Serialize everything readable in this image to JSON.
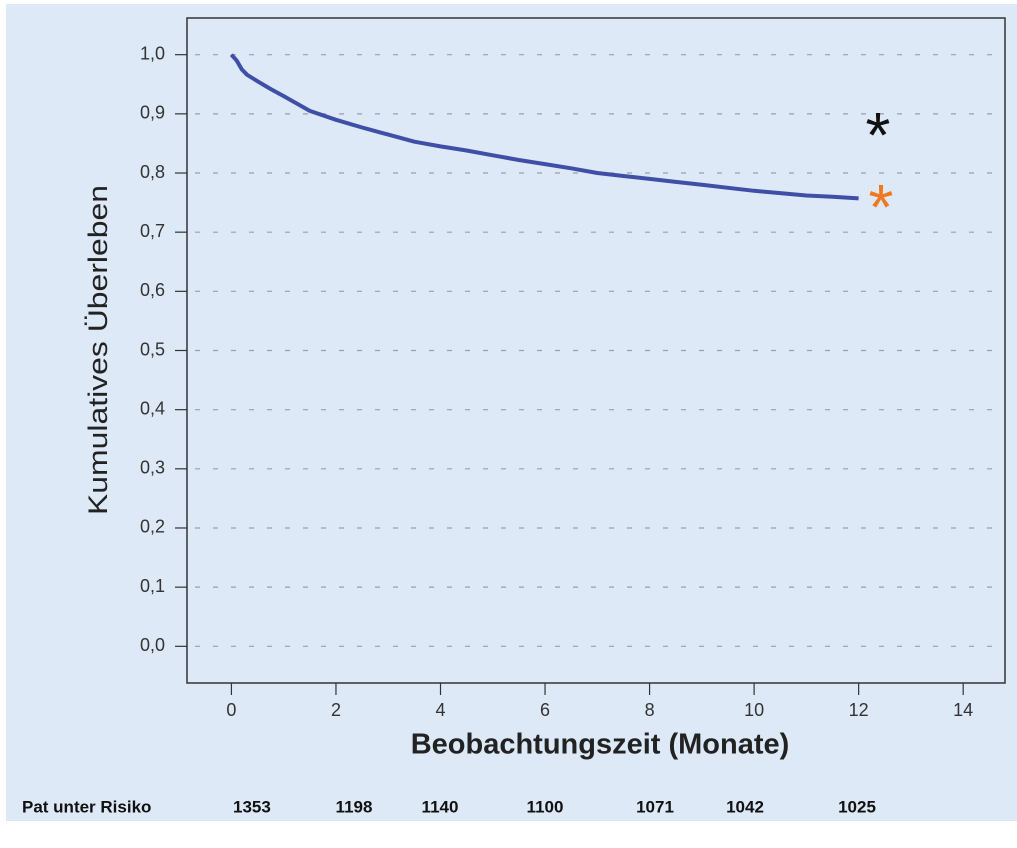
{
  "chart_data": {
    "type": "line",
    "ylabel": "Kumulatives Überleben",
    "xlabel": "Beobachtungszeit (Monate)",
    "x": [
      0,
      0.1,
      0.2,
      0.3,
      0.5,
      0.75,
      1,
      1.5,
      2,
      2.5,
      3,
      3.5,
      4,
      4.5,
      5,
      5.5,
      6,
      6.5,
      7,
      7.5,
      8,
      8.5,
      9,
      9.5,
      10,
      10.5,
      11,
      11.5,
      12
    ],
    "series": [
      {
        "color": "#3f4fa8",
        "values": [
          1.0,
          0.99,
          0.975,
          0.966,
          0.955,
          0.942,
          0.93,
          0.905,
          0.89,
          0.877,
          0.865,
          0.853,
          0.845,
          0.838,
          0.83,
          0.822,
          0.815,
          0.808,
          0.8,
          0.795,
          0.79,
          0.785,
          0.78,
          0.775,
          0.77,
          0.766,
          0.762,
          0.76,
          0.757
        ]
      }
    ],
    "xlim": [
      -0.85,
      14.8
    ],
    "ylim": [
      -0.062,
      1.062
    ],
    "xticks": [
      0,
      2,
      4,
      6,
      8,
      10,
      12,
      14
    ],
    "yticks": [
      {
        "value": 0,
        "label": "0,0"
      },
      {
        "value": 0.1,
        "label": "0,1"
      },
      {
        "value": 0.2,
        "label": "0,2"
      },
      {
        "value": 0.3,
        "label": "0,3"
      },
      {
        "value": 0.4,
        "label": "0,4"
      },
      {
        "value": 0.5,
        "label": "0,5"
      },
      {
        "value": 0.6,
        "label": "0,6"
      },
      {
        "value": 0.7,
        "label": "0,7"
      },
      {
        "value": 0.8,
        "label": "0,8"
      },
      {
        "value": 0.9,
        "label": "0,9"
      },
      {
        "value": 1,
        "label": "1,0"
      }
    ],
    "grid": true,
    "annotations": [
      {
        "text": "*",
        "color": "#111111"
      },
      {
        "text": "*",
        "color": "#f07820"
      }
    ],
    "risk_table": {
      "label": "Pat unter Risiko",
      "values": [
        1353,
        1198,
        1140,
        1100,
        1071,
        1042,
        1025
      ]
    }
  }
}
